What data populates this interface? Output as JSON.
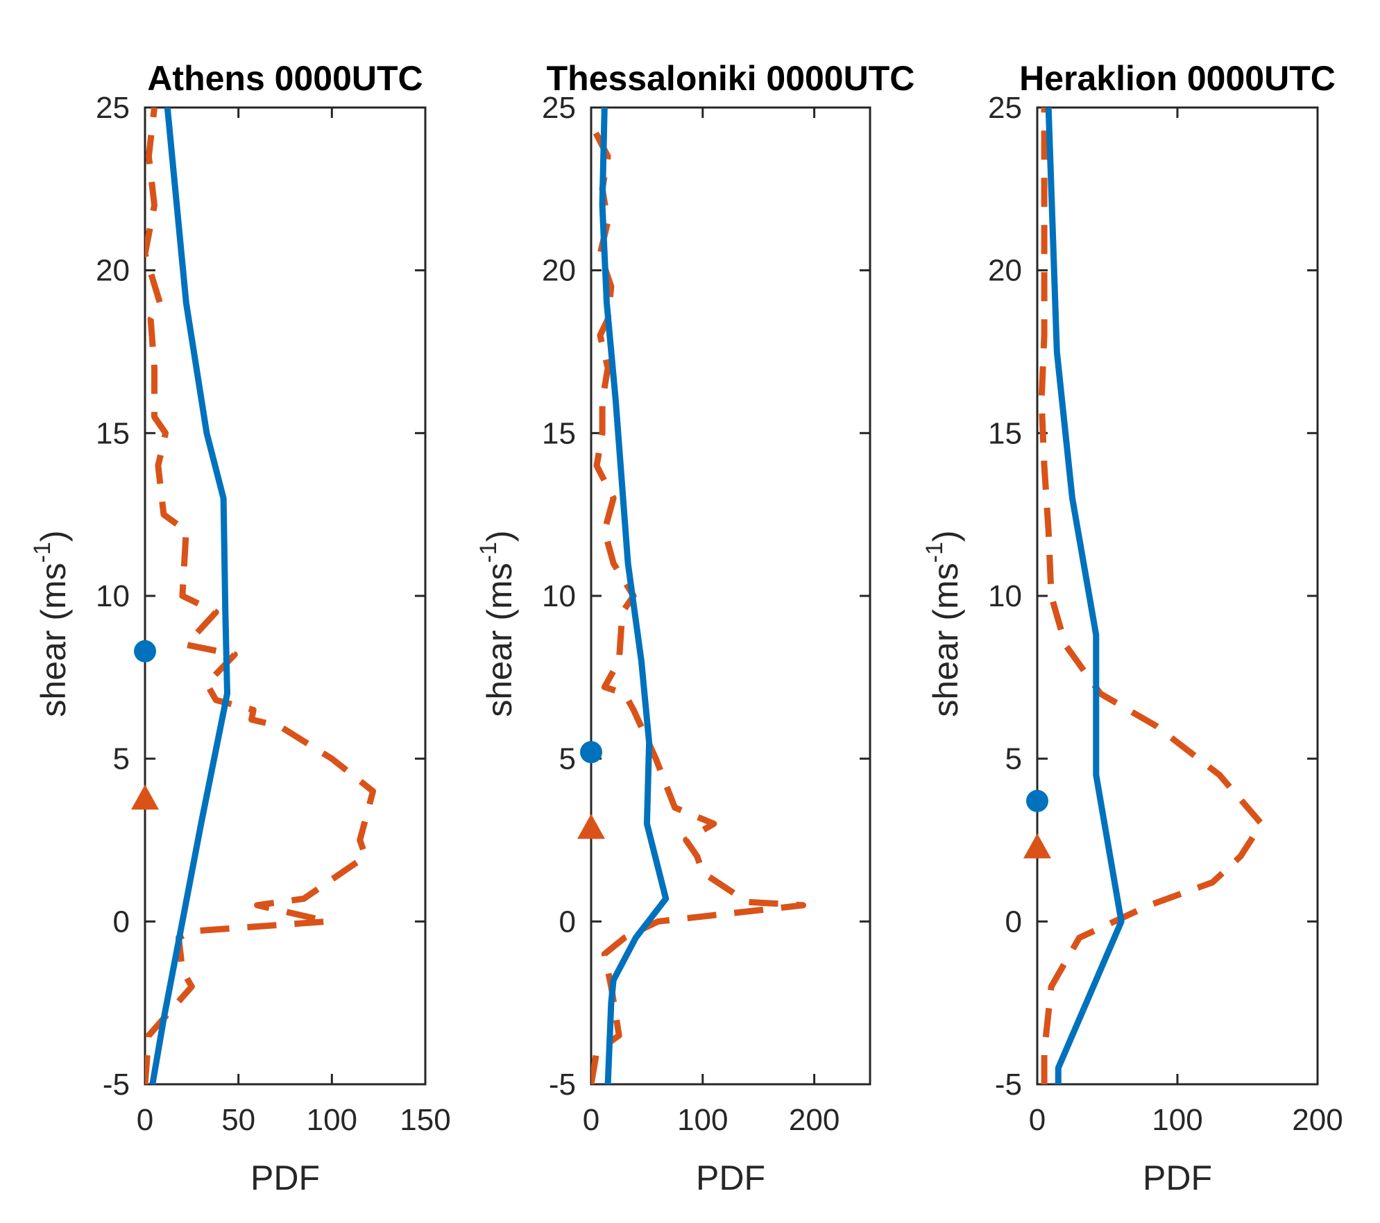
{
  "figure": {
    "colors": {
      "series_solid": "#0072BD",
      "series_dashed": "#D95319",
      "axes": "#262626",
      "background": "#ffffff"
    }
  },
  "chart_data": [
    {
      "type": "line",
      "title": "Athens 0000UTC",
      "xlabel": "PDF",
      "ylabel": "shear (ms",
      "ylabel_sup": "-1",
      "ylabel_close": ")",
      "xlim": [
        0,
        150
      ],
      "ylim": [
        -5,
        25
      ],
      "xticks": [
        0,
        50,
        100,
        150
      ],
      "yticks": [
        -5,
        0,
        5,
        10,
        15,
        20,
        25
      ],
      "series": [
        {
          "name": "solid",
          "style": "solid",
          "color": "#0072BD",
          "x": [
            4,
            10,
            20,
            30,
            44,
            43,
            42,
            33,
            22,
            12
          ],
          "y": [
            -5,
            -3,
            0,
            3,
            7,
            9.5,
            13,
            15,
            19,
            25
          ]
        },
        {
          "name": "dashed",
          "style": "dashed",
          "color": "#D95319",
          "x": [
            0,
            2,
            25,
            20,
            18,
            25,
            98,
            60,
            85,
            118,
            115,
            122,
            100,
            72,
            57,
            58,
            38,
            33,
            48,
            22,
            38,
            20,
            22,
            10,
            7,
            11,
            5,
            5,
            3,
            8,
            0,
            5,
            2,
            5
          ],
          "y": [
            -5,
            -3.5,
            -2,
            -1.5,
            -0.5,
            -0.3,
            0,
            0.5,
            0.7,
            2,
            2.5,
            4,
            5,
            6,
            6.2,
            6.5,
            6.8,
            7.3,
            8.2,
            8.5,
            9.5,
            10,
            12,
            12.5,
            14,
            15,
            15.5,
            17,
            18.5,
            19,
            20.5,
            22,
            23.5,
            25
          ]
        }
      ],
      "markers": [
        {
          "shape": "circle",
          "color": "#0072BD",
          "x": 0,
          "y": 8.3
        },
        {
          "shape": "triangle",
          "color": "#D95319",
          "x": 0,
          "y": 3.8
        }
      ]
    },
    {
      "type": "line",
      "title": "Thessaloniki 0000UTC",
      "xlabel": "PDF",
      "ylabel": "shear (ms",
      "ylabel_sup": "-1",
      "ylabel_close": ")",
      "xlim": [
        0,
        250
      ],
      "ylim": [
        -5,
        25
      ],
      "xticks": [
        0,
        100,
        200
      ],
      "yticks": [
        -5,
        0,
        5,
        10,
        15,
        20,
        25
      ],
      "series": [
        {
          "name": "solid",
          "style": "solid",
          "color": "#0072BD",
          "x": [
            15,
            18,
            20,
            40,
            67,
            50,
            52,
            45,
            33,
            22,
            14,
            10,
            12
          ],
          "y": [
            -5,
            -2.5,
            -1.8,
            -0.5,
            0.7,
            3,
            5.5,
            8,
            11,
            16,
            19,
            22,
            25
          ]
        },
        {
          "name": "dashed",
          "style": "dashed",
          "color": "#D95319",
          "x": [
            0,
            5,
            25,
            18,
            12,
            30,
            60,
            190,
            140,
            100,
            95,
            85,
            110,
            75,
            58,
            38,
            30,
            12,
            25,
            28,
            38,
            20,
            12,
            20,
            5,
            10,
            10,
            15,
            8,
            15,
            18,
            8,
            15,
            10,
            15,
            0
          ],
          "y": [
            -5,
            -4,
            -3.5,
            -2,
            -1,
            -0.5,
            0,
            0.5,
            0.6,
            1.5,
            2,
            2.5,
            3,
            3.5,
            5,
            6.5,
            7,
            7.2,
            8,
            9.5,
            10,
            11,
            12,
            13,
            14,
            15,
            16,
            17,
            18,
            18.5,
            19.5,
            20.5,
            21.5,
            22.5,
            23.5,
            24.5
          ]
        }
      ],
      "markers": [
        {
          "shape": "circle",
          "color": "#0072BD",
          "x": 0,
          "y": 5.2
        },
        {
          "shape": "triangle",
          "color": "#D95319",
          "x": 0,
          "y": 2.9
        }
      ]
    },
    {
      "type": "line",
      "title": "Heraklion 0000UTC",
      "xlabel": "PDF",
      "ylabel": "shear (ms",
      "ylabel_sup": "-1",
      "ylabel_close": ")",
      "xlim": [
        0,
        200
      ],
      "ylim": [
        -5,
        25
      ],
      "xticks": [
        0,
        100,
        200
      ],
      "yticks": [
        -5,
        0,
        5,
        10,
        15,
        20,
        25
      ],
      "series": [
        {
          "name": "solid",
          "style": "solid",
          "color": "#0072BD",
          "x": [
            15,
            15,
            60,
            42,
            42,
            25,
            14,
            8
          ],
          "y": [
            -5,
            -4.5,
            0,
            4.5,
            8.8,
            13,
            17.5,
            25
          ]
        },
        {
          "name": "dashed",
          "style": "dashed",
          "color": "#D95319",
          "x": [
            5,
            5,
            10,
            30,
            80,
            125,
            145,
            160,
            130,
            85,
            45,
            20,
            10,
            8,
            5,
            3,
            5,
            5,
            5
          ],
          "y": [
            -5,
            -4,
            -2,
            -0.5,
            0.5,
            1.2,
            2,
            3,
            4.5,
            6,
            7,
            8.5,
            10,
            12,
            14,
            16,
            18,
            21,
            25
          ]
        }
      ],
      "markers": [
        {
          "shape": "circle",
          "color": "#0072BD",
          "x": 0,
          "y": 3.7
        },
        {
          "shape": "triangle",
          "color": "#D95319",
          "x": 0,
          "y": 2.3
        }
      ]
    }
  ]
}
